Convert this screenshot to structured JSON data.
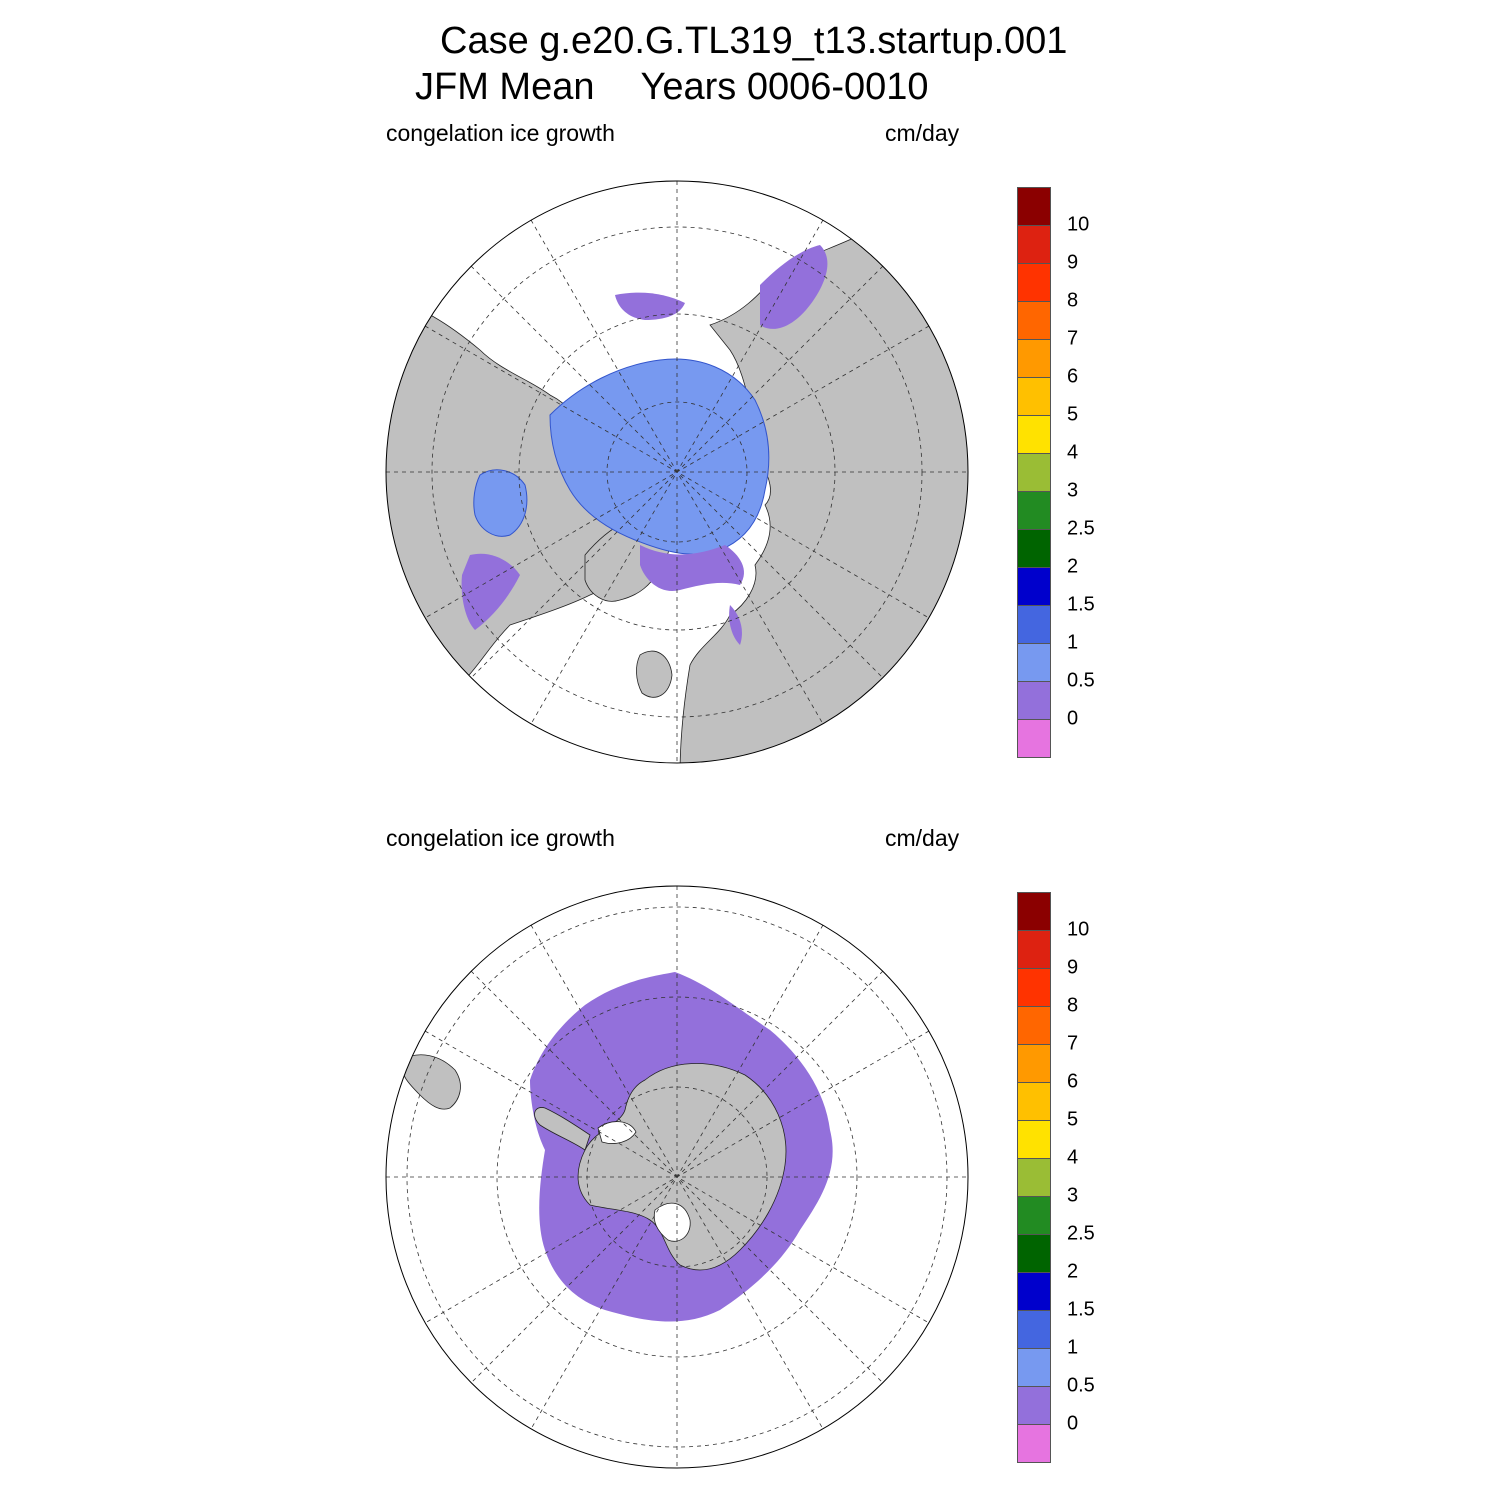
{
  "title": {
    "line1": "Case g.e20.G.TL319_t13.startup.001",
    "season": "JFM Mean",
    "years": "Years 0006-0010"
  },
  "panels": [
    {
      "id": "north",
      "hemisphere": "Northern",
      "variable": "congelation ice growth",
      "units": "cm/day"
    },
    {
      "id": "south",
      "hemisphere": "Southern",
      "variable": "congelation ice growth",
      "units": "cm/day"
    }
  ],
  "colorbar": {
    "labels": [
      "0",
      "0.5",
      "1",
      "1.5",
      "2",
      "2.5",
      "3",
      "4",
      "5",
      "6",
      "7",
      "8",
      "9",
      "10"
    ],
    "colors": [
      "#e674e0",
      "#9370db",
      "#7799f0",
      "#4466e0",
      "#0000cc",
      "#006400",
      "#228b22",
      "#9abd35",
      "#ffe200",
      "#ffc000",
      "#ff9900",
      "#ff6600",
      "#ff3300",
      "#dd2211",
      "#8b0000"
    ]
  },
  "map_colors": {
    "land": "#c0c0c0",
    "ocean": "#ffffff",
    "ice_low": "#9370db",
    "ice_mid": "#7799f0",
    "ice_high": "#4466e0"
  }
}
